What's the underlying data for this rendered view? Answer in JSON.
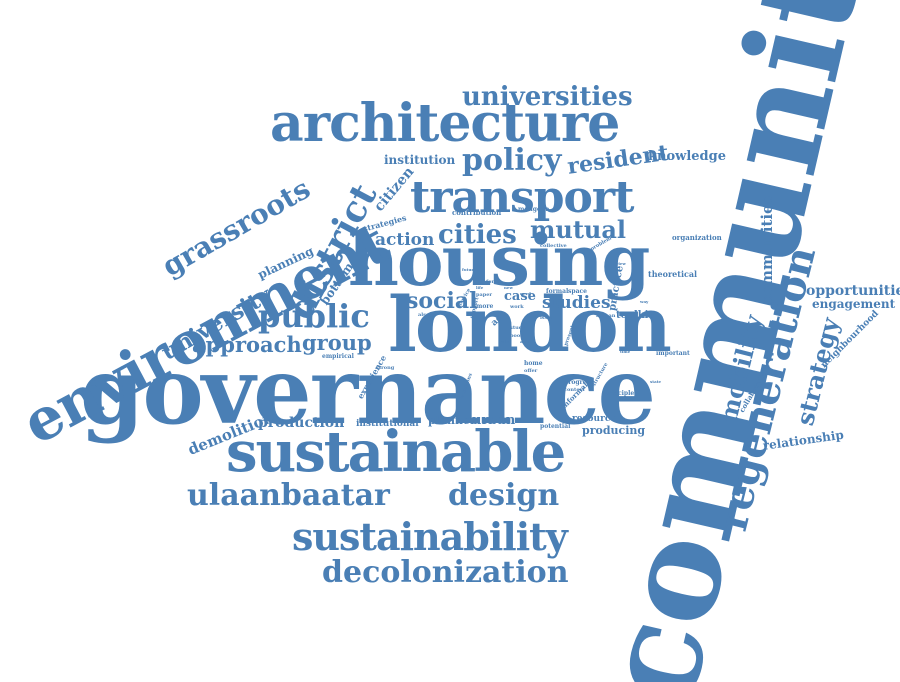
{
  "color": "#4a7fb5",
  "words": {
    "community": "community",
    "governance": "governance",
    "london": "london",
    "housing": "housing",
    "environment": "environment",
    "sustainable": "sustainable",
    "architecture": "architecture",
    "transport": "transport",
    "regeneration": "regeneration",
    "sustainability": "sustainability",
    "ulaanbaatar": "ulaanbaatar",
    "decolonization": "decolonization",
    "design": "design",
    "district": "district",
    "grassroots": "grassroots",
    "universities": "universities",
    "policy": "policy",
    "public": "public",
    "mobility": "mobility",
    "university": "university",
    "cities": "cities",
    "mutual": "mutual",
    "social": "social",
    "approach": "approach",
    "group": "group",
    "strategy": "strategy",
    "communities": "communities",
    "resident": "resident",
    "action": "action",
    "studies": "studies",
    "demolition": "demolition",
    "production": "production",
    "opportunities": "opportunities",
    "engagement": "engagement",
    "knowledge": "knowledge",
    "institution": "institution",
    "citizen": "citizen",
    "bottom": "bottom",
    "planning": "planning",
    "case": "case",
    "urban": "urban",
    "planner": "planner",
    "producing": "producing",
    "resource": "resource",
    "institutional": "institutional",
    "relationship": "relationship",
    "neighbourhood": "neighbourhood",
    "toolkit": "toolkit",
    "practice": "practice",
    "theoretical": "theoretical",
    "organization": "organization",
    "collaboration": "collaboration",
    "strategies": "strategies",
    "contribution": "contribution",
    "mongolia": "mongolia",
    "experience": "experience",
    "empirical": "empirical",
    "important": "important",
    "principle": "principle",
    "informal": "informal",
    "potential": "potential",
    "progress": "progress",
    "context": "context",
    "collective": "collective",
    "problem": "problem",
    "formal": "formal",
    "space": "space",
    "paper": "paper",
    "service": "service",
    "support": "support",
    "more": "more",
    "work": "work",
    "home": "home",
    "offer": "offer",
    "human": "human",
    "issue": "issue",
    "structure": "structure",
    "present": "present",
    "strong": "strong",
    "commons": "commons",
    "form": "form",
    "study": "study",
    "book": "book",
    "acc": "acc",
    "also": "also",
    "future": "future",
    "life": "life",
    "new": "new",
    "need": "need",
    "role": "role",
    "area": "area",
    "view": "view",
    "way": "way",
    "time": "time",
    "state": "state"
  }
}
